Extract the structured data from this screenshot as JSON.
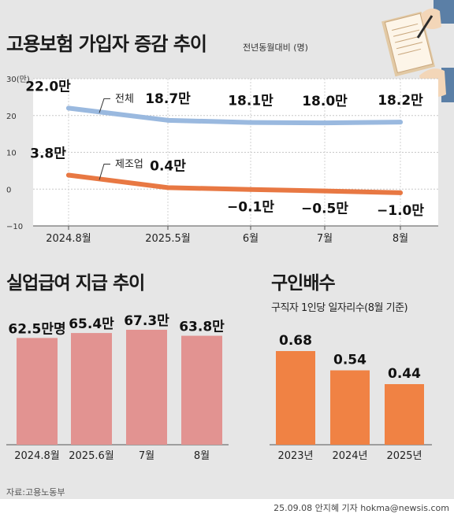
{
  "header": {
    "title": "고용보험 가입자 증감 추이",
    "unit": "전년동월대비 (명)"
  },
  "colors": {
    "line_total": "#9ab9df",
    "line_mfg": "#e87843",
    "bar_benefit": "#e29391",
    "bar_ratio": "#f08244"
  },
  "charts": {
    "insured": {
      "ylabel": "30(만)",
      "series_labels": {
        "total": "전체",
        "mfg": "제조업"
      }
    },
    "benefit": {
      "title": "실업급여 지급 추이"
    },
    "ratio": {
      "title": "구인배수",
      "subtitle": "구직자 1인당 일자리수(8월 기준)"
    }
  },
  "chart_data": [
    {
      "type": "line",
      "title": "고용보험 가입자 증감 추이",
      "x": [
        "2024.8월",
        "2025.5월",
        "6월",
        "7월",
        "8월"
      ],
      "ylim": [
        -10,
        30
      ],
      "yticks": [
        "30(만)",
        "20",
        "10",
        "0",
        "−10"
      ],
      "series": [
        {
          "name": "전체",
          "values": [
            22.0,
            18.7,
            18.1,
            18.0,
            18.2
          ],
          "labels": [
            "22.0만",
            "18.7만",
            "18.1만",
            "18.0만",
            "18.2만"
          ]
        },
        {
          "name": "제조업",
          "values": [
            3.8,
            0.4,
            -0.1,
            -0.5,
            -1.0
          ],
          "labels": [
            "3.8만",
            "0.4만",
            "−0.1만",
            "−0.5만",
            "−1.0만"
          ]
        }
      ]
    },
    {
      "type": "bar",
      "title": "실업급여 지급 추이",
      "categories": [
        "2024.8월",
        "2025.6월",
        "7월",
        "8월"
      ],
      "values": [
        62.5,
        65.4,
        67.3,
        63.8
      ],
      "labels": [
        "62.5만명",
        "65.4만",
        "67.3만",
        "63.8만"
      ]
    },
    {
      "type": "bar",
      "title": "구인배수",
      "subtitle": "구직자 1인당 일자리수(8월 기준)",
      "categories": [
        "2023년",
        "2024년",
        "2025년"
      ],
      "values": [
        0.68,
        0.54,
        0.44
      ],
      "labels": [
        "0.68",
        "0.54",
        "0.44"
      ]
    }
  ],
  "footer": {
    "source": "자료:고용노동부",
    "credit": "25.09.08 안지혜 기자 hokma@newsis.com"
  }
}
